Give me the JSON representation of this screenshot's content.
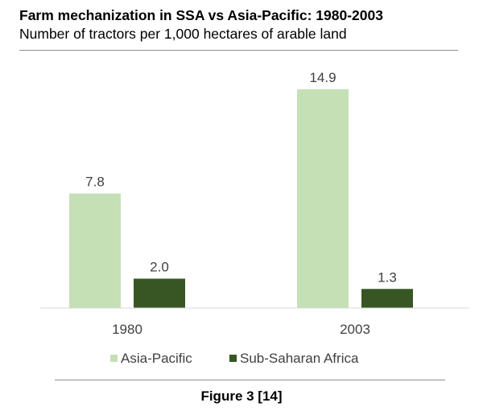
{
  "header": {
    "title": "Farm mechanization in SSA vs Asia-Pacific: 1980-2003",
    "subtitle": "Number of tractors per 1,000 hectares of arable land"
  },
  "chart_data": {
    "type": "bar",
    "categories": [
      "1980",
      "2003"
    ],
    "series": [
      {
        "name": "Asia-Pacific",
        "values": [
          7.8,
          14.9
        ],
        "labels": [
          "7.8",
          "14.9"
        ],
        "color": "#c5e0b4"
      },
      {
        "name": "Sub-Saharan Africa",
        "values": [
          2.0,
          1.3
        ],
        "labels": [
          "2.0",
          "1.3"
        ],
        "color": "#375623"
      }
    ],
    "title": "Farm mechanization in SSA vs Asia-Pacific: 1980-2003",
    "xlabel": "",
    "ylabel": "",
    "ylim": [
      0,
      15.5
    ],
    "grid": false,
    "legend": "bottom"
  },
  "footer": {
    "caption": "Figure 3 [14]"
  }
}
